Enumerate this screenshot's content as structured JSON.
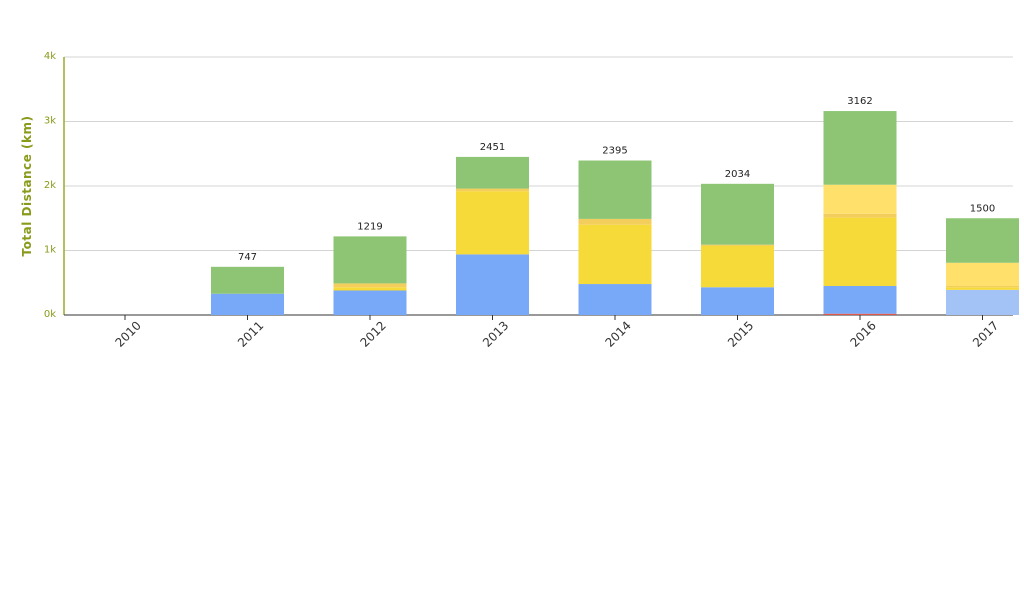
{
  "chart_data": {
    "type": "bar",
    "stacked": true,
    "ylabel": "Total Distance (km)",
    "ylim": [
      0,
      4000
    ],
    "yticks": [
      {
        "value": 0,
        "label": "0k"
      },
      {
        "value": 1000,
        "label": "1k"
      },
      {
        "value": 2000,
        "label": "2k"
      },
      {
        "value": 3000,
        "label": "3k"
      },
      {
        "value": 4000,
        "label": "4k"
      }
    ],
    "grid": true,
    "categories": [
      "2010",
      "2011",
      "2012",
      "2013",
      "2014",
      "2015",
      "2016",
      "2017"
    ],
    "totals": [
      null,
      "747",
      "1219",
      "2451",
      "2395",
      "2034",
      "3162",
      "1500"
    ],
    "series": [
      {
        "color": "#e2574c",
        "values": [
          0,
          0,
          0,
          0,
          0,
          0,
          20,
          0
        ]
      },
      {
        "color": "#a3c3f7",
        "values": [
          0,
          0,
          0,
          0,
          0,
          0,
          0,
          390
        ]
      },
      {
        "color": "#78a8f8",
        "values": [
          0,
          330,
          380,
          940,
          480,
          430,
          430,
          0
        ]
      },
      {
        "color": "#f5da3a",
        "values": [
          0,
          0,
          50,
          980,
          920,
          640,
          1060,
          40
        ]
      },
      {
        "color": "#f4ce5c",
        "values": [
          0,
          0,
          60,
          40,
          90,
          20,
          60,
          20
        ]
      },
      {
        "color": "#fee06a",
        "values": [
          0,
          0,
          0,
          0,
          0,
          0,
          450,
          360
        ]
      },
      {
        "color": "#8dc574",
        "values": [
          0,
          417,
          729,
          491,
          905,
          944,
          1142,
          690
        ]
      }
    ]
  }
}
